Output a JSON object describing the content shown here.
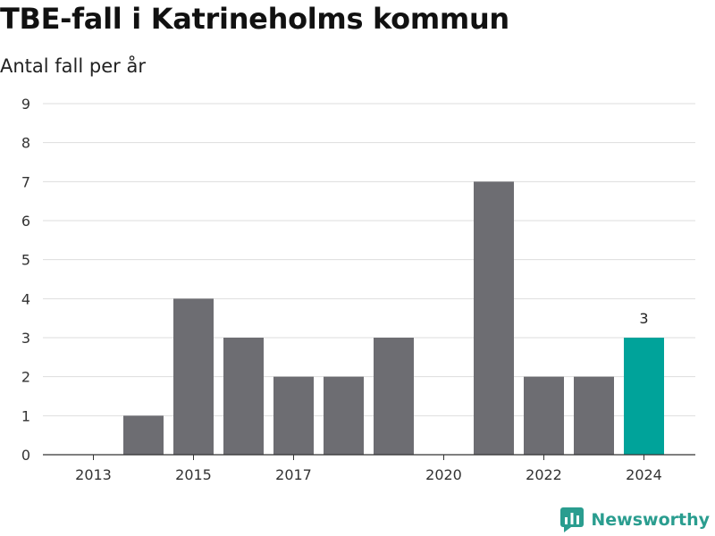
{
  "chart_data": {
    "type": "bar",
    "title": "TBE-fall i Katrineholms kommun",
    "subtitle": "Antal fall per år",
    "categories": [
      "2013",
      "2014",
      "2015",
      "2016",
      "2017",
      "2018",
      "2019",
      "2020",
      "2021",
      "2022",
      "2023",
      "2024"
    ],
    "values": [
      0,
      1,
      4,
      3,
      2,
      2,
      3,
      0,
      7,
      2,
      2,
      3
    ],
    "x_tick_labels": [
      "2013",
      "2015",
      "2017",
      "2020",
      "2022",
      "2024"
    ],
    "y_ticks": [
      0,
      1,
      2,
      3,
      4,
      5,
      6,
      7,
      8,
      9
    ],
    "ylim": [
      0,
      9
    ],
    "grid": true,
    "highlight": {
      "category": "2024",
      "label": "3"
    },
    "colors": {
      "bar": "#6d6d72",
      "highlight": "#00a39a",
      "grid": "#dddddd",
      "axis": "#333333"
    }
  },
  "branding": {
    "name": "Newsworthy",
    "icon": "newsworthy-logo-icon",
    "color": "#2a9d8f"
  }
}
